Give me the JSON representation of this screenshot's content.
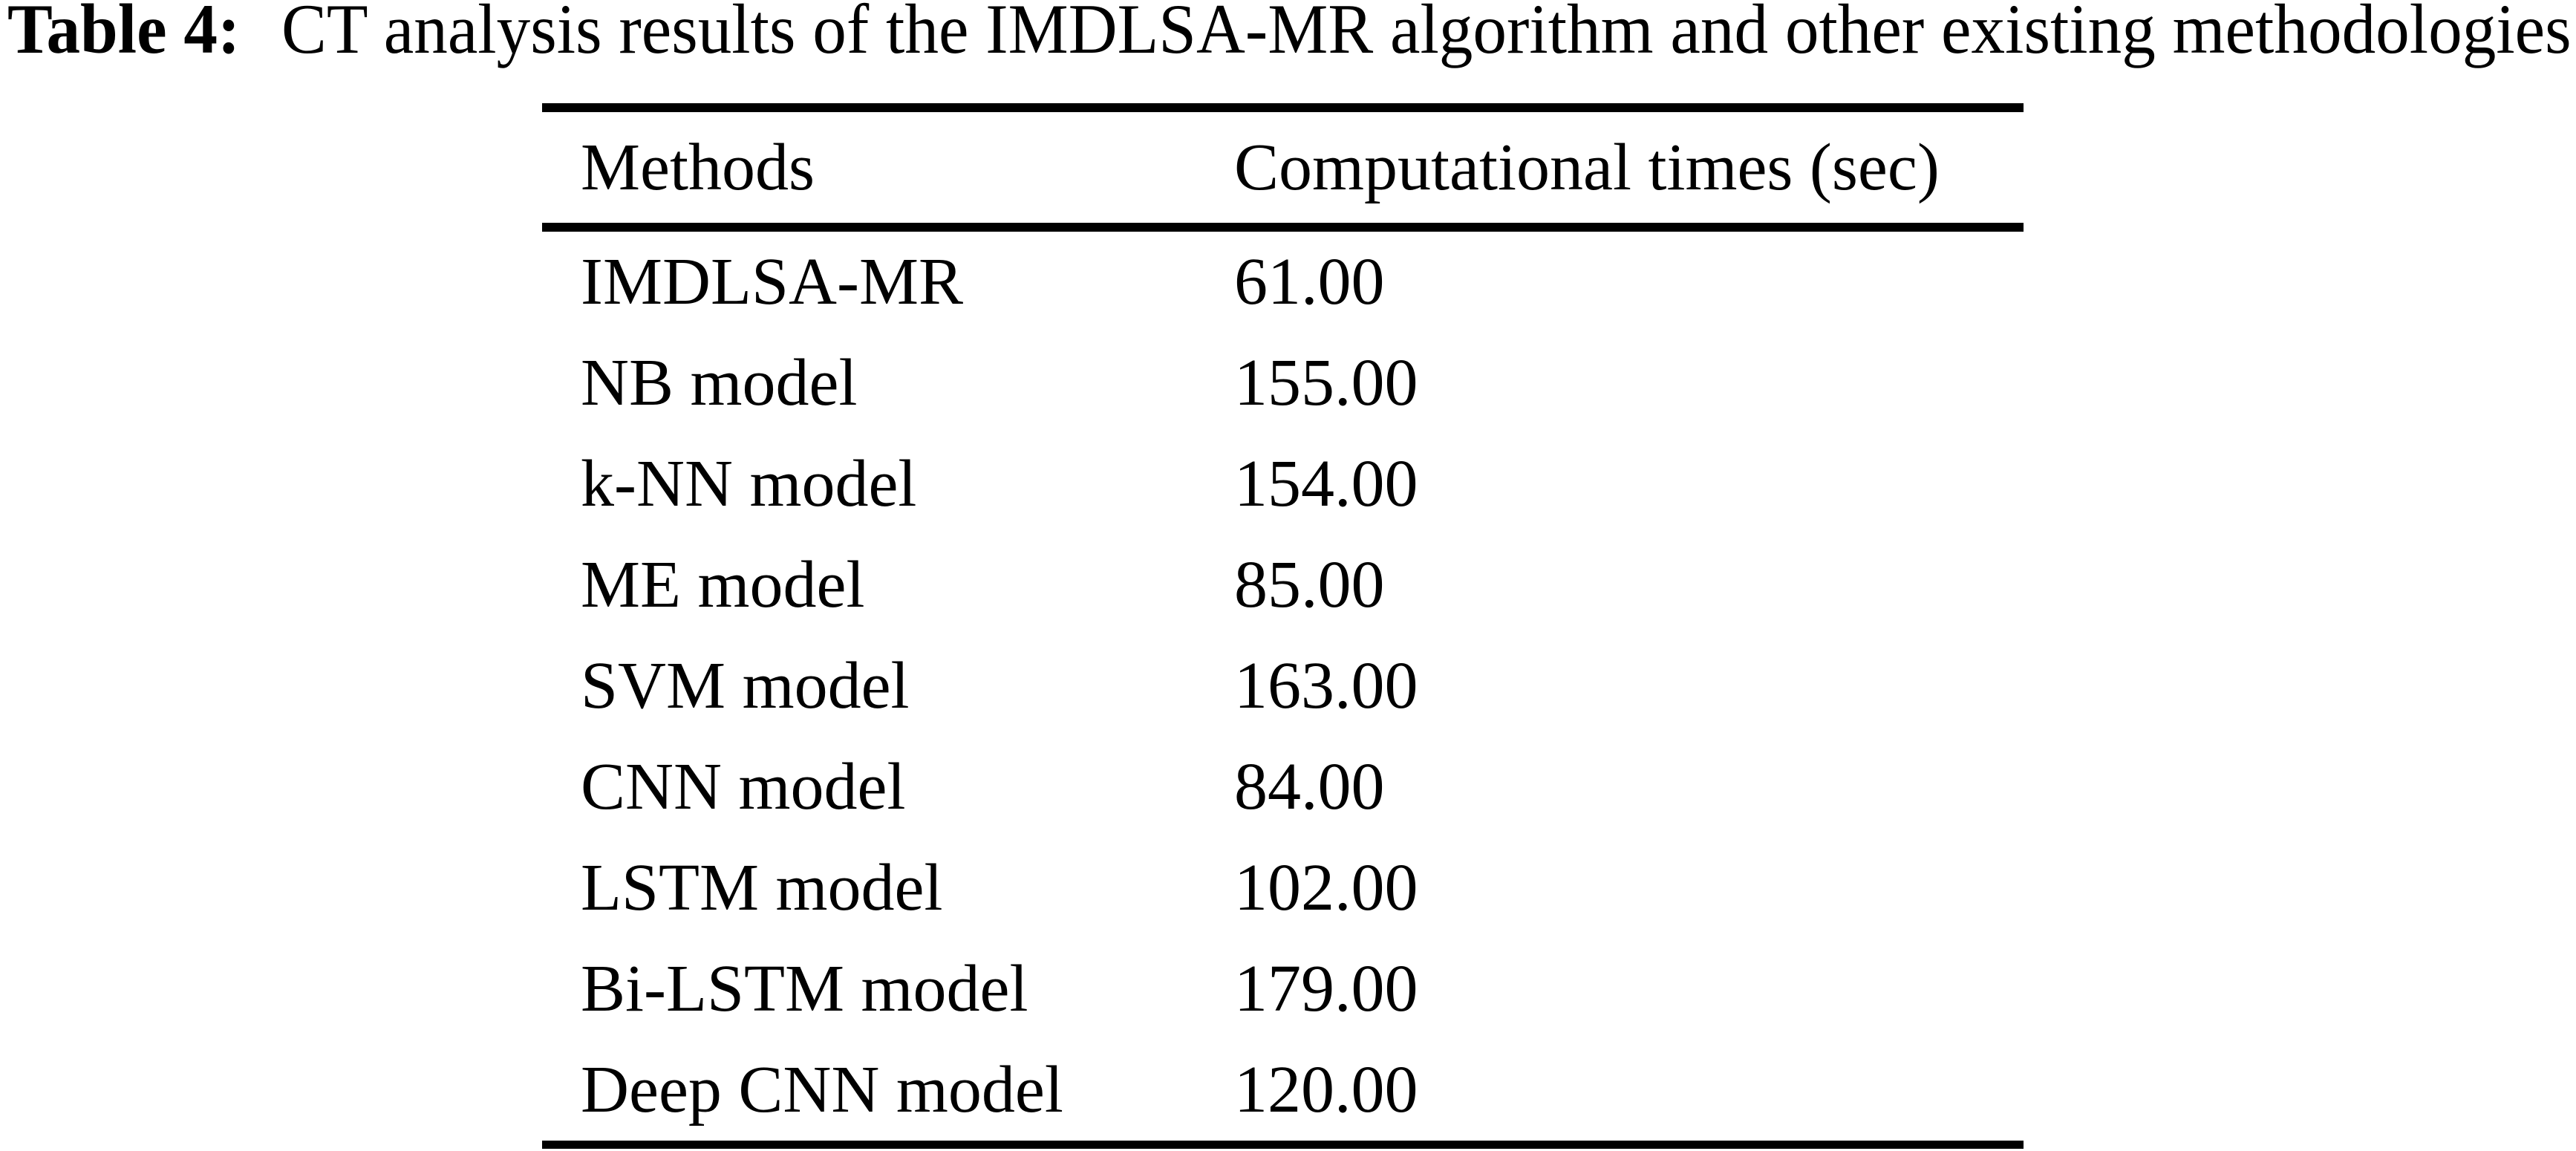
{
  "colors": {
    "background": "#ffffff",
    "text": "#000000",
    "rule": "#000000"
  },
  "caption": {
    "label": "Table 4:",
    "text": "CT analysis results of the IMDLSA-MR algorithm and other existing methodologies"
  },
  "table": {
    "columns": [
      "Methods",
      "Computational times (sec)"
    ],
    "rows": [
      {
        "method": "IMDLSA-MR",
        "time": "61.00"
      },
      {
        "method": "NB model",
        "time": "155.00"
      },
      {
        "method": "k-NN model",
        "time": "154.00"
      },
      {
        "method": "ME model",
        "time": "85.00"
      },
      {
        "method": "SVM model",
        "time": "163.00"
      },
      {
        "method": "CNN model",
        "time": "84.00"
      },
      {
        "method": "LSTM model",
        "time": "102.00"
      },
      {
        "method": "Bi-LSTM model",
        "time": "179.00"
      },
      {
        "method": "Deep CNN model",
        "time": "120.00"
      }
    ]
  }
}
